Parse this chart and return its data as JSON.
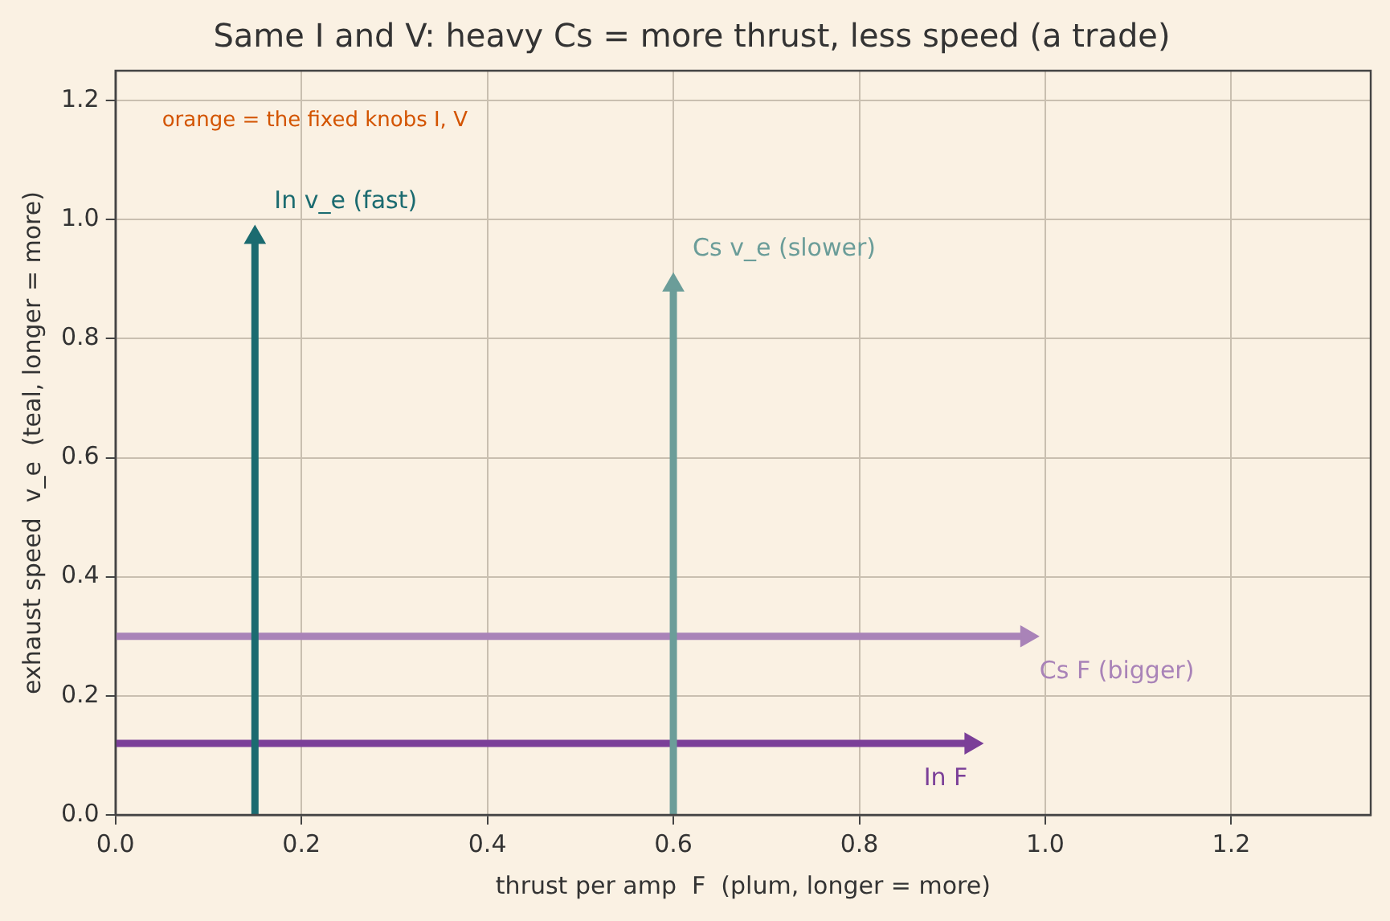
{
  "chart_data": {
    "type": "line",
    "title": "Same I and V: heavy Cs = more thrust, less speed (a trade)",
    "xlabel": "thrust per amp  F  (plum, longer = more)",
    "ylabel": "exhaust speed  v_e  (teal, longer = more)",
    "series": [
      {
        "name": "In v_e (fast)",
        "color": "#1b6b70",
        "x": [
          0.15,
          0.15
        ],
        "values": [
          0,
          0.97
        ]
      },
      {
        "name": "Cs v_e (slower)",
        "color": "#6b9d99",
        "x": [
          0.6,
          0.6
        ],
        "values": [
          0,
          0.89
        ]
      },
      {
        "name": "In F",
        "color": "#7b3f98",
        "x": [
          0,
          0.92
        ],
        "values": [
          0.12,
          0.12
        ]
      },
      {
        "name": "Cs F (bigger)",
        "color": "#a983b8",
        "x": [
          0,
          0.98
        ],
        "values": [
          0.3,
          0.3
        ]
      }
    ],
    "annotations": [
      "orange = the fixed knobs I, V"
    ],
    "xlim": [
      0,
      1.35
    ],
    "xticks": [
      {
        "value": 0,
        "label": "0.0"
      },
      0.2,
      0.4,
      0.6,
      0.8,
      {
        "value": 1,
        "label": "1.0"
      },
      1.2
    ],
    "ylim": [
      0,
      1.25
    ],
    "yticks": [
      {
        "value": 0,
        "label": "0.0"
      },
      0.2,
      0.4,
      0.6,
      0.8,
      {
        "value": 1,
        "label": "1.0"
      },
      1.2
    ],
    "grid": true,
    "line_style": "solid",
    "marker": "triangle"
  }
}
